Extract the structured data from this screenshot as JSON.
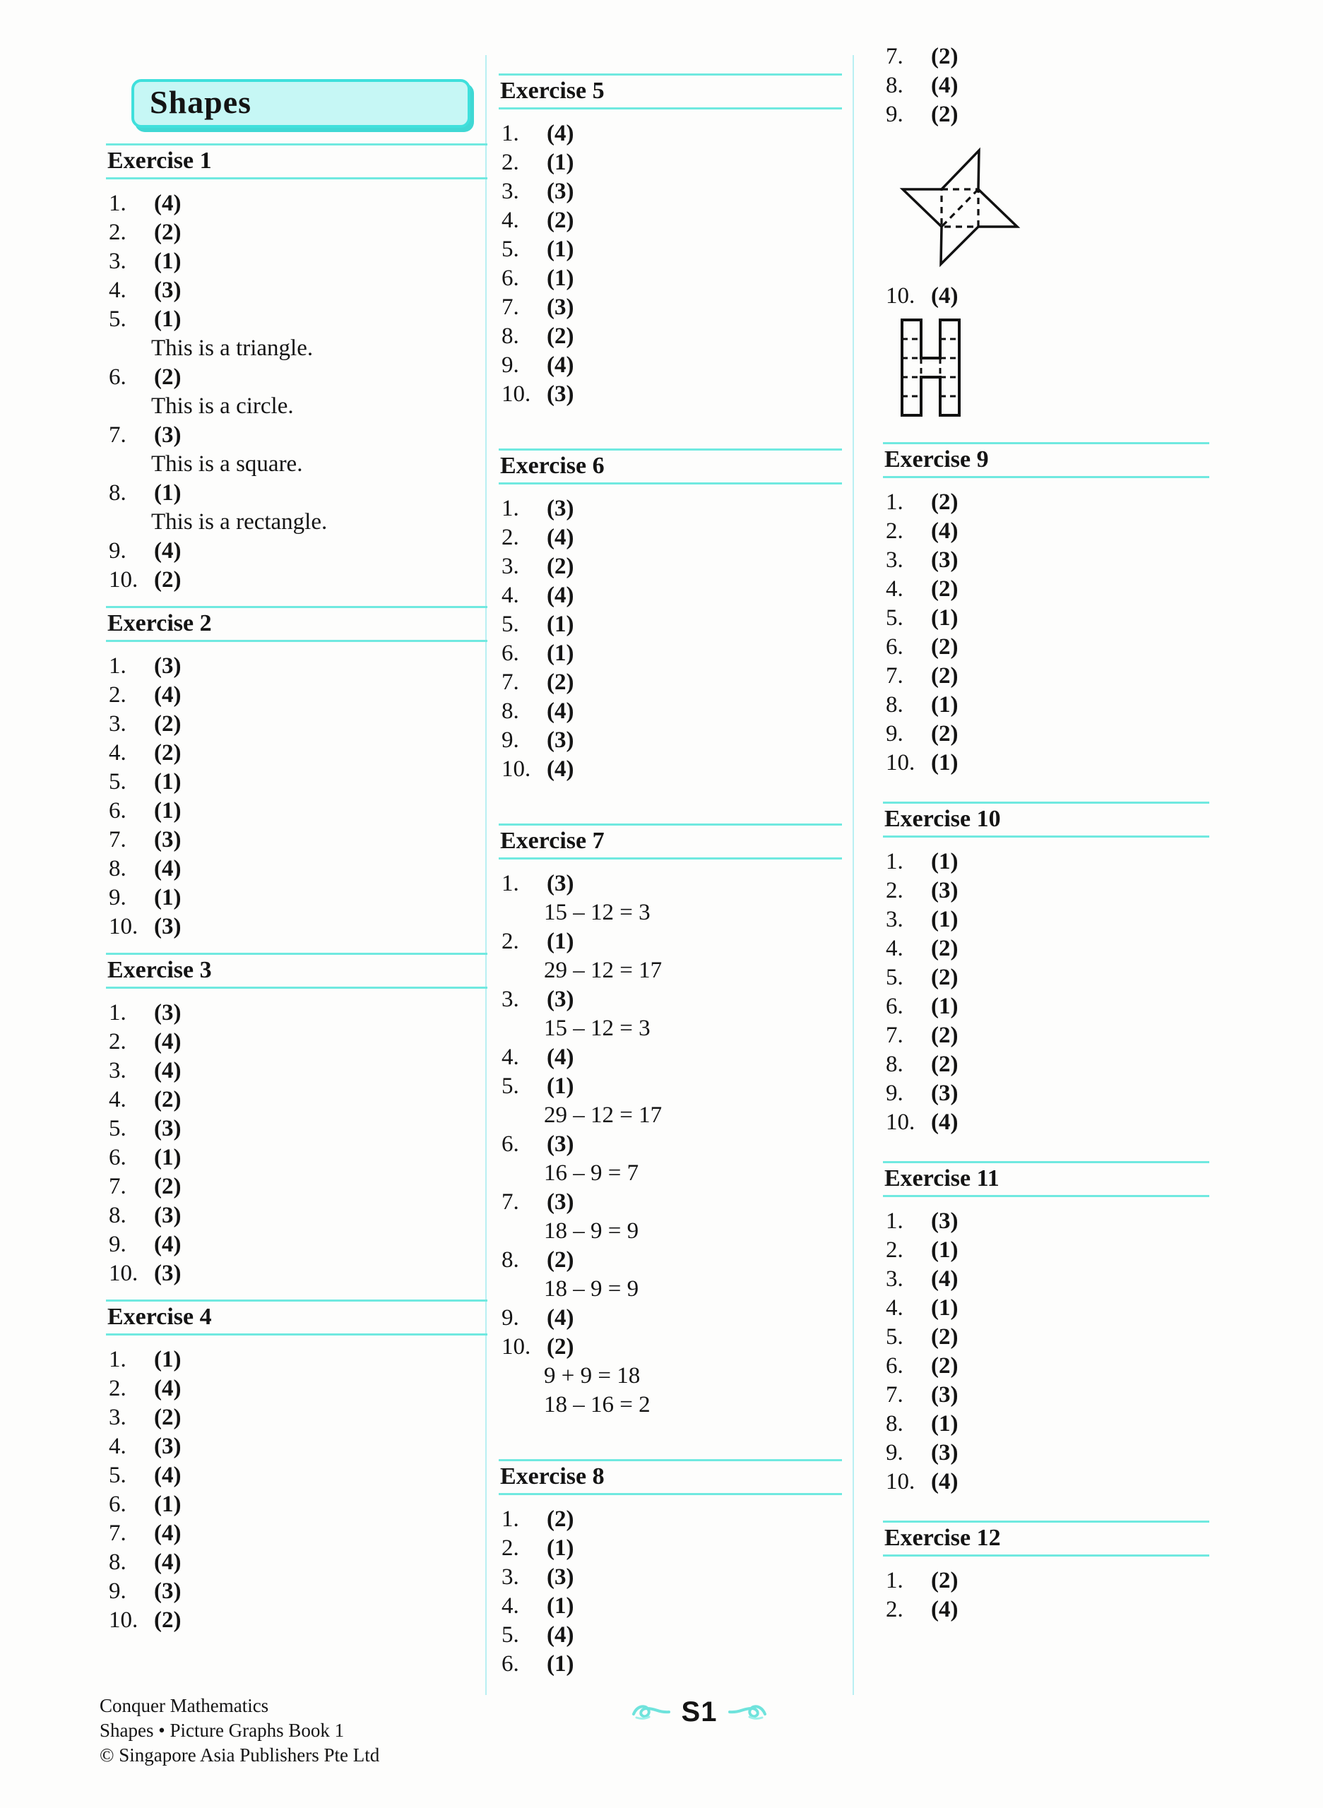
{
  "page": {
    "title": "Shapes",
    "page_label": "S1",
    "footer_lines": [
      "Conquer Mathematics",
      "Shapes • Picture Graphs Book 1",
      "© Singapore Asia Publishers Pte Ltd"
    ]
  },
  "colors": {
    "rule_cyan": "#70e9e0",
    "separator_cyan": "#b9f0f2",
    "title_box_fill": "#c6f7f5",
    "title_box_border": "#3fe0dc",
    "figure_stroke": "#111111"
  },
  "figures": {
    "star": "pinwheel-star-with-dashed-square",
    "h": "h-shape-of-dashed-unit-squares"
  },
  "exercises": {
    "ex1": {
      "title": "Exercise 1",
      "items": [
        {
          "n": "1.",
          "a": "(4)"
        },
        {
          "n": "2.",
          "a": "(2)"
        },
        {
          "n": "3.",
          "a": "(1)"
        },
        {
          "n": "4.",
          "a": "(3)"
        },
        {
          "n": "5.",
          "a": "(1)",
          "subs": [
            "This is a triangle."
          ]
        },
        {
          "n": "6.",
          "a": "(2)",
          "subs": [
            "This is a circle."
          ]
        },
        {
          "n": "7.",
          "a": "(3)",
          "subs": [
            "This is a square."
          ]
        },
        {
          "n": "8.",
          "a": "(1)",
          "subs": [
            "This is a rectangle."
          ]
        },
        {
          "n": "9.",
          "a": "(4)"
        },
        {
          "n": "10.",
          "a": "(2)"
        }
      ]
    },
    "ex2": {
      "title": "Exercise 2",
      "items": [
        {
          "n": "1.",
          "a": "(3)"
        },
        {
          "n": "2.",
          "a": "(4)"
        },
        {
          "n": "3.",
          "a": "(2)"
        },
        {
          "n": "4.",
          "a": "(2)"
        },
        {
          "n": "5.",
          "a": "(1)"
        },
        {
          "n": "6.",
          "a": "(1)"
        },
        {
          "n": "7.",
          "a": "(3)"
        },
        {
          "n": "8.",
          "a": "(4)"
        },
        {
          "n": "9.",
          "a": "(1)"
        },
        {
          "n": "10.",
          "a": "(3)"
        }
      ]
    },
    "ex3": {
      "title": "Exercise 3",
      "items": [
        {
          "n": "1.",
          "a": "(3)"
        },
        {
          "n": "2.",
          "a": "(4)"
        },
        {
          "n": "3.",
          "a": "(4)"
        },
        {
          "n": "4.",
          "a": "(2)"
        },
        {
          "n": "5.",
          "a": "(3)"
        },
        {
          "n": "6.",
          "a": "(1)"
        },
        {
          "n": "7.",
          "a": "(2)"
        },
        {
          "n": "8.",
          "a": "(3)"
        },
        {
          "n": "9.",
          "a": "(4)"
        },
        {
          "n": "10.",
          "a": "(3)"
        }
      ]
    },
    "ex4": {
      "title": "Exercise 4",
      "items": [
        {
          "n": "1.",
          "a": "(1)"
        },
        {
          "n": "2.",
          "a": "(4)"
        },
        {
          "n": "3.",
          "a": "(2)"
        },
        {
          "n": "4.",
          "a": "(3)"
        },
        {
          "n": "5.",
          "a": "(4)"
        },
        {
          "n": "6.",
          "a": "(1)"
        },
        {
          "n": "7.",
          "a": "(4)"
        },
        {
          "n": "8.",
          "a": "(4)"
        },
        {
          "n": "9.",
          "a": "(3)"
        },
        {
          "n": "10.",
          "a": "(2)"
        }
      ]
    },
    "ex5": {
      "title": "Exercise 5",
      "items": [
        {
          "n": "1.",
          "a": "(4)"
        },
        {
          "n": "2.",
          "a": "(1)"
        },
        {
          "n": "3.",
          "a": "(3)"
        },
        {
          "n": "4.",
          "a": "(2)"
        },
        {
          "n": "5.",
          "a": "(1)"
        },
        {
          "n": "6.",
          "a": "(1)"
        },
        {
          "n": "7.",
          "a": "(3)"
        },
        {
          "n": "8.",
          "a": "(2)"
        },
        {
          "n": "9.",
          "a": "(4)"
        },
        {
          "n": "10.",
          "a": "(3)"
        }
      ]
    },
    "ex6": {
      "title": "Exercise 6",
      "items": [
        {
          "n": "1.",
          "a": "(3)"
        },
        {
          "n": "2.",
          "a": "(4)"
        },
        {
          "n": "3.",
          "a": "(2)"
        },
        {
          "n": "4.",
          "a": "(4)"
        },
        {
          "n": "5.",
          "a": "(1)"
        },
        {
          "n": "6.",
          "a": "(1)"
        },
        {
          "n": "7.",
          "a": "(2)"
        },
        {
          "n": "8.",
          "a": "(4)"
        },
        {
          "n": "9.",
          "a": "(3)"
        },
        {
          "n": "10.",
          "a": "(4)"
        }
      ]
    },
    "ex7": {
      "title": "Exercise 7",
      "items": [
        {
          "n": "1.",
          "a": "(3)",
          "subs": [
            "15 – 12 = 3"
          ]
        },
        {
          "n": "2.",
          "a": "(1)",
          "subs": [
            "29 – 12 = 17"
          ]
        },
        {
          "n": "3.",
          "a": "(3)",
          "subs": [
            "15 – 12 = 3"
          ]
        },
        {
          "n": "4.",
          "a": "(4)"
        },
        {
          "n": "5.",
          "a": "(1)",
          "subs": [
            "29 – 12 = 17"
          ]
        },
        {
          "n": "6.",
          "a": "(3)",
          "subs": [
            "16 – 9 = 7"
          ]
        },
        {
          "n": "7.",
          "a": "(3)",
          "subs": [
            "18 – 9 = 9"
          ]
        },
        {
          "n": "8.",
          "a": "(2)",
          "subs": [
            "18 – 9 = 9"
          ]
        },
        {
          "n": "9.",
          "a": "(4)"
        },
        {
          "n": "10.",
          "a": "(2)",
          "subs": [
            "9 + 9 = 18",
            "18 – 16 = 2"
          ]
        }
      ]
    },
    "ex8a": {
      "title": "Exercise 8",
      "items": [
        {
          "n": "1.",
          "a": "(2)"
        },
        {
          "n": "2.",
          "a": "(1)"
        },
        {
          "n": "3.",
          "a": "(3)"
        },
        {
          "n": "4.",
          "a": "(1)"
        },
        {
          "n": "5.",
          "a": "(4)"
        },
        {
          "n": "6.",
          "a": "(1)"
        }
      ]
    },
    "ex8b": {
      "title": "",
      "items": [
        {
          "n": "7.",
          "a": "(2)"
        },
        {
          "n": "8.",
          "a": "(4)"
        },
        {
          "n": "9.",
          "a": "(2)",
          "figure_after": "star"
        },
        {
          "n": "10.",
          "a": "(4)",
          "figure_after": "h"
        }
      ]
    },
    "ex9": {
      "title": "Exercise 9",
      "items": [
        {
          "n": "1.",
          "a": "(2)"
        },
        {
          "n": "2.",
          "a": "(4)"
        },
        {
          "n": "3.",
          "a": "(3)"
        },
        {
          "n": "4.",
          "a": "(2)"
        },
        {
          "n": "5.",
          "a": "(1)"
        },
        {
          "n": "6.",
          "a": "(2)"
        },
        {
          "n": "7.",
          "a": "(2)"
        },
        {
          "n": "8.",
          "a": "(1)"
        },
        {
          "n": "9.",
          "a": "(2)"
        },
        {
          "n": "10.",
          "a": "(1)"
        }
      ]
    },
    "ex10": {
      "title": "Exercise 10",
      "items": [
        {
          "n": "1.",
          "a": "(1)"
        },
        {
          "n": "2.",
          "a": "(3)"
        },
        {
          "n": "3.",
          "a": "(1)"
        },
        {
          "n": "4.",
          "a": "(2)"
        },
        {
          "n": "5.",
          "a": "(2)"
        },
        {
          "n": "6.",
          "a": "(1)"
        },
        {
          "n": "7.",
          "a": "(2)"
        },
        {
          "n": "8.",
          "a": "(2)"
        },
        {
          "n": "9.",
          "a": "(3)"
        },
        {
          "n": "10.",
          "a": "(4)"
        }
      ]
    },
    "ex11": {
      "title": "Exercise 11",
      "items": [
        {
          "n": "1.",
          "a": "(3)"
        },
        {
          "n": "2.",
          "a": "(1)"
        },
        {
          "n": "3.",
          "a": "(4)"
        },
        {
          "n": "4.",
          "a": "(1)"
        },
        {
          "n": "5.",
          "a": "(2)"
        },
        {
          "n": "6.",
          "a": "(2)"
        },
        {
          "n": "7.",
          "a": "(3)"
        },
        {
          "n": "8.",
          "a": "(1)"
        },
        {
          "n": "9.",
          "a": "(3)"
        },
        {
          "n": "10.",
          "a": "(4)"
        }
      ]
    },
    "ex12": {
      "title": "Exercise 12",
      "items": [
        {
          "n": "1.",
          "a": "(2)"
        },
        {
          "n": "2.",
          "a": "(4)"
        }
      ]
    }
  },
  "columns": [
    {
      "blocks": [
        {
          "type": "title"
        },
        {
          "type": "exercise",
          "ex": "ex1"
        },
        {
          "type": "exercise",
          "ex": "ex2"
        },
        {
          "type": "exercise",
          "ex": "ex3"
        },
        {
          "type": "exercise",
          "ex": "ex4"
        }
      ]
    },
    {
      "blocks": [
        {
          "type": "exercise",
          "ex": "ex5"
        },
        {
          "type": "exercise",
          "ex": "ex6"
        },
        {
          "type": "exercise",
          "ex": "ex7"
        },
        {
          "type": "exercise",
          "ex": "ex8a"
        }
      ]
    },
    {
      "blocks": [
        {
          "type": "items",
          "ex": "ex8b"
        },
        {
          "type": "exercise",
          "ex": "ex9"
        },
        {
          "type": "exercise",
          "ex": "ex10"
        },
        {
          "type": "exercise",
          "ex": "ex11"
        },
        {
          "type": "exercise",
          "ex": "ex12"
        }
      ]
    }
  ]
}
